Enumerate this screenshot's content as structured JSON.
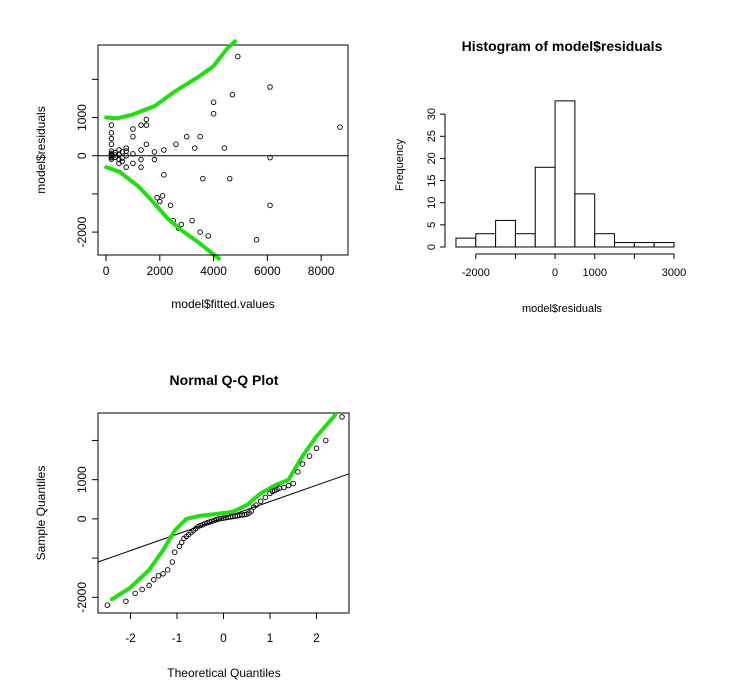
{
  "chart_data": [
    {
      "type": "scatter",
      "title": "",
      "xlabel": "model$fitted.values",
      "ylabel": "model$residuals",
      "xlim": [
        -300,
        9000
      ],
      "ylim": [
        -2600,
        2900
      ],
      "xticks": [
        0,
        2000,
        4000,
        6000,
        8000
      ],
      "xtick_labels": [
        "0",
        "2000",
        "4000",
        "6000",
        "8000"
      ],
      "yticks": [
        -2000,
        0,
        1000
      ],
      "ytick_labels": [
        "-2000",
        "0",
        "1000"
      ],
      "ytick_marks": [
        -2000,
        -1000,
        0,
        1000,
        2000
      ],
      "hline": 0,
      "points": [
        [
          200,
          10
        ],
        [
          200,
          30
        ],
        [
          200,
          60
        ],
        [
          200,
          -20
        ],
        [
          200,
          -50
        ],
        [
          200,
          -90
        ],
        [
          200,
          120
        ],
        [
          200,
          300
        ],
        [
          200,
          450
        ],
        [
          200,
          600
        ],
        [
          200,
          800
        ],
        [
          350,
          20
        ],
        [
          350,
          -40
        ],
        [
          350,
          80
        ],
        [
          480,
          -100
        ],
        [
          480,
          -200
        ],
        [
          480,
          40
        ],
        [
          480,
          150
        ],
        [
          600,
          -60
        ],
        [
          600,
          100
        ],
        [
          600,
          -150
        ],
        [
          750,
          -300
        ],
        [
          750,
          0
        ],
        [
          750,
          200
        ],
        [
          750,
          120
        ],
        [
          1000,
          -200
        ],
        [
          1000,
          50
        ],
        [
          1000,
          500
        ],
        [
          1000,
          700
        ],
        [
          1300,
          150
        ],
        [
          1300,
          -100
        ],
        [
          1300,
          800
        ],
        [
          1300,
          -300
        ],
        [
          1500,
          950
        ],
        [
          1500,
          300
        ],
        [
          1500,
          800
        ],
        [
          1800,
          100
        ],
        [
          1800,
          -100
        ],
        [
          1900,
          -1100
        ],
        [
          2000,
          -1200
        ],
        [
          2100,
          -1050
        ],
        [
          2150,
          150
        ],
        [
          2150,
          -500
        ],
        [
          2400,
          -1300
        ],
        [
          2500,
          -1700
        ],
        [
          2600,
          300
        ],
        [
          2700,
          -1900
        ],
        [
          2800,
          -1800
        ],
        [
          3000,
          500
        ],
        [
          3200,
          -1700
        ],
        [
          3300,
          200
        ],
        [
          3500,
          -2000
        ],
        [
          3500,
          500
        ],
        [
          3600,
          -600
        ],
        [
          3800,
          -2100
        ],
        [
          4000,
          1400
        ],
        [
          4000,
          1100
        ],
        [
          4400,
          200
        ],
        [
          4600,
          -600
        ],
        [
          4700,
          1600
        ],
        [
          4900,
          2600
        ],
        [
          5600,
          -2200
        ],
        [
          6100,
          1800
        ],
        [
          6100,
          -50
        ],
        [
          6100,
          -1300
        ],
        [
          8700,
          750
        ]
      ],
      "smooth_upper": [
        [
          0,
          1000
        ],
        [
          400,
          980
        ],
        [
          1000,
          1080
        ],
        [
          1800,
          1300
        ],
        [
          2600,
          1700
        ],
        [
          3400,
          2050
        ],
        [
          4000,
          2350
        ],
        [
          4500,
          2800
        ],
        [
          4800,
          3000
        ]
      ],
      "smooth_lower": [
        [
          0,
          -300
        ],
        [
          500,
          -420
        ],
        [
          1200,
          -800
        ],
        [
          1800,
          -1250
        ],
        [
          2300,
          -1650
        ],
        [
          2800,
          -1950
        ],
        [
          3400,
          -2250
        ],
        [
          4200,
          -2700
        ]
      ]
    },
    {
      "type": "bar",
      "title": "Histogram of model$residuals",
      "xlabel": "model$residuals",
      "ylabel": "Frequency",
      "xlim": [
        -2600,
        3000
      ],
      "ylim": [
        0,
        35
      ],
      "xticks": [
        -2000,
        0,
        1000,
        3000
      ],
      "xtick_labels": [
        "-2000",
        "0",
        "1000",
        "3000"
      ],
      "xtick_marks": [
        -2000,
        -1000,
        0,
        1000,
        2000,
        3000
      ],
      "yticks": [
        0,
        5,
        10,
        15,
        20,
        25,
        30
      ],
      "ytick_labels": [
        "0",
        "5",
        "10",
        "15",
        "20",
        "25",
        "30"
      ],
      "bin_edges": [
        -2500,
        -2000,
        -1500,
        -1000,
        -500,
        0,
        500,
        1000,
        1500,
        2000,
        2500,
        3000
      ],
      "values": [
        2,
        3,
        6,
        3,
        18,
        33,
        12,
        3,
        1,
        1,
        1
      ]
    },
    {
      "type": "scatter",
      "title": "Normal Q-Q Plot",
      "xlabel": "Theoretical Quantiles",
      "ylabel": "Sample Quantiles",
      "xlim": [
        -2.7,
        2.7
      ],
      "ylim": [
        -2400,
        2700
      ],
      "xticks": [
        -2,
        -1,
        0,
        1,
        2
      ],
      "xtick_labels": [
        "-2",
        "-1",
        "0",
        "1",
        "2"
      ],
      "yticks": [
        -2000,
        0,
        1000
      ],
      "ytick_labels": [
        "-2000",
        "0",
        "1000"
      ],
      "ytick_marks": [
        -2000,
        -1000,
        0,
        1000,
        2000
      ],
      "qq_line": [
        [
          -2.7,
          -1100
        ],
        [
          2.7,
          1150
        ]
      ],
      "smooth": [
        [
          -2.4,
          -2050
        ],
        [
          -2.0,
          -1750
        ],
        [
          -1.6,
          -1300
        ],
        [
          -1.3,
          -800
        ],
        [
          -1.05,
          -300
        ],
        [
          -0.8,
          0
        ],
        [
          -0.5,
          80
        ],
        [
          -0.2,
          120
        ],
        [
          0.2,
          180
        ],
        [
          0.5,
          350
        ],
        [
          0.8,
          650
        ],
        [
          1.1,
          850
        ],
        [
          1.4,
          1000
        ],
        [
          1.7,
          1600
        ],
        [
          2.0,
          2100
        ],
        [
          2.4,
          2650
        ]
      ],
      "points": [
        [
          -2.5,
          -2200
        ],
        [
          -2.1,
          -2100
        ],
        [
          -1.9,
          -1900
        ],
        [
          -1.75,
          -1800
        ],
        [
          -1.6,
          -1700
        ],
        [
          -1.5,
          -1550
        ],
        [
          -1.4,
          -1450
        ],
        [
          -1.3,
          -1400
        ],
        [
          -1.2,
          -1300
        ],
        [
          -1.1,
          -1100
        ],
        [
          -1.05,
          -850
        ],
        [
          -0.95,
          -700
        ],
        [
          -0.9,
          -600
        ],
        [
          -0.85,
          -500
        ],
        [
          -0.8,
          -450
        ],
        [
          -0.75,
          -400
        ],
        [
          -0.7,
          -350
        ],
        [
          -0.65,
          -300
        ],
        [
          -0.6,
          -250
        ],
        [
          -0.55,
          -200
        ],
        [
          -0.5,
          -170
        ],
        [
          -0.45,
          -150
        ],
        [
          -0.4,
          -120
        ],
        [
          -0.35,
          -100
        ],
        [
          -0.3,
          -80
        ],
        [
          -0.25,
          -60
        ],
        [
          -0.2,
          -40
        ],
        [
          -0.15,
          -20
        ],
        [
          -0.1,
          0
        ],
        [
          -0.05,
          10
        ],
        [
          0.0,
          20
        ],
        [
          0.05,
          30
        ],
        [
          0.1,
          40
        ],
        [
          0.15,
          50
        ],
        [
          0.2,
          60
        ],
        [
          0.25,
          70
        ],
        [
          0.3,
          80
        ],
        [
          0.35,
          90
        ],
        [
          0.4,
          100
        ],
        [
          0.45,
          110
        ],
        [
          0.5,
          120
        ],
        [
          0.55,
          150
        ],
        [
          0.6,
          200
        ],
        [
          0.65,
          300
        ],
        [
          0.7,
          350
        ],
        [
          0.8,
          450
        ],
        [
          0.9,
          550
        ],
        [
          1.0,
          650
        ],
        [
          1.05,
          700
        ],
        [
          1.1,
          720
        ],
        [
          1.15,
          750
        ],
        [
          1.2,
          780
        ],
        [
          1.3,
          800
        ],
        [
          1.4,
          850
        ],
        [
          1.5,
          900
        ],
        [
          1.6,
          1200
        ],
        [
          1.7,
          1400
        ],
        [
          1.85,
          1600
        ],
        [
          2.0,
          1800
        ],
        [
          2.2,
          2000
        ],
        [
          2.55,
          2600
        ]
      ]
    }
  ]
}
